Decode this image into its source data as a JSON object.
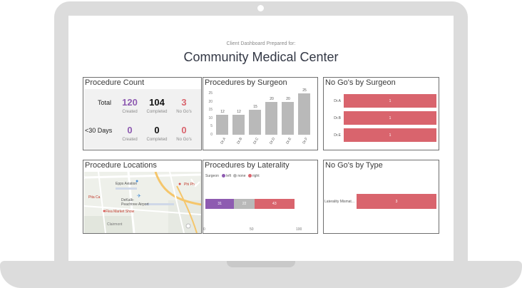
{
  "header": {
    "subtitle": "Client Dashboard Prepared for:",
    "title": "Community Medical Center"
  },
  "procedure_count": {
    "title": "Procedure Count",
    "rows": [
      {
        "label": "Total",
        "created": "120",
        "completed": "104",
        "no_gos": "3"
      },
      {
        "label": "<30 Days",
        "created": "0",
        "completed": "0",
        "no_gos": "0"
      }
    ],
    "captions": {
      "created": "Created",
      "completed": "Completed",
      "no_gos": "No Go's"
    },
    "colors": {
      "created": "#8e5bb1",
      "completed": "#111111",
      "no_gos": "#d9646d"
    }
  },
  "procedures_by_surgeon": {
    "title": "Procedures by Surgeon",
    "chart_data": {
      "type": "bar",
      "categories": [
        "Dr.A",
        "Dr.B",
        "Dr.C",
        "Dr.D",
        "Dr.E",
        "Dr.F"
      ],
      "values": [
        12,
        12,
        15,
        20,
        20,
        25
      ],
      "yticks": [
        "25",
        "20",
        "15",
        "10",
        "5",
        "0"
      ],
      "ylim": [
        0,
        25
      ],
      "color": "#b9b9b9"
    }
  },
  "no_gos_by_surgeon": {
    "title": "No Go's by Surgeon",
    "chart_data": {
      "type": "bar",
      "orientation": "horizontal",
      "categories": [
        "Dr.A",
        "Dr.B",
        "Dr.E"
      ],
      "values": [
        1,
        1,
        1
      ],
      "color": "#d9646d"
    }
  },
  "procedure_locations": {
    "title": "Procedure Locations",
    "map_labels": {
      "poi1": "Epps Aviation",
      "airport": "DeKalb-Peachtree Airport",
      "poi2": "Pita Ca",
      "poi3": "Flea Market Show",
      "poi4": "Phi Ph",
      "street": "Clairmont"
    }
  },
  "procedures_by_laterality": {
    "title": "Procedures by Laterality",
    "legend_title": "Surgeon",
    "chart_data": {
      "type": "bar",
      "orientation": "horizontal-stacked",
      "series": [
        {
          "name": "left",
          "value": 31,
          "label": "31",
          "color": "#8e5bb1"
        },
        {
          "name": "none",
          "value": 22,
          "label": "22",
          "color": "#b9b9b9"
        },
        {
          "name": "right",
          "value": 43,
          "label": "43",
          "color": "#d9646d"
        }
      ],
      "xticks": [
        "0",
        "50",
        "100"
      ],
      "xlim": [
        0,
        100
      ]
    }
  },
  "no_gos_by_type": {
    "title": "No Go's by Type",
    "chart_data": {
      "type": "bar",
      "orientation": "horizontal",
      "categories": [
        "Laterality Mismat..."
      ],
      "values": [
        3
      ],
      "labels": [
        "3"
      ],
      "color": "#d9646d"
    }
  }
}
